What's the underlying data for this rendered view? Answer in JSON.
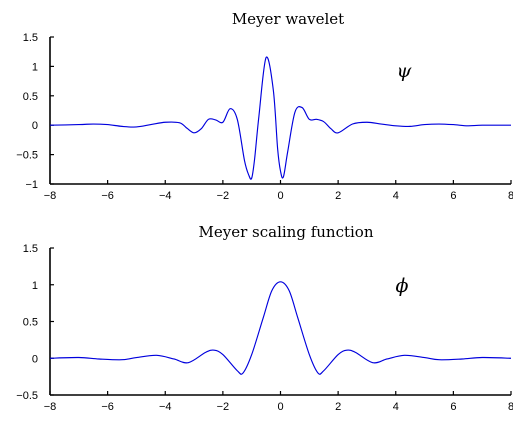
{
  "chart_data": [
    {
      "type": "line",
      "title": "Meyer wavelet",
      "annotation": "ψ",
      "xlabel": "",
      "ylabel": "",
      "xlim": [
        -8,
        8
      ],
      "ylim": [
        -1,
        1.5
      ],
      "xticks": [
        "−8",
        "−6",
        "−4",
        "−2",
        "0",
        "2",
        "4",
        "6",
        "8"
      ],
      "yticks": [
        "1.5",
        "1",
        "0.5",
        "0",
        "−0.5",
        "−1"
      ],
      "grid": false,
      "series": [
        {
          "color": "#0000dd",
          "x": [
            -8,
            -7,
            -6.5,
            -6,
            -5.5,
            -5,
            -4.5,
            -4,
            -3.5,
            -3.25,
            -3,
            -2.75,
            -2.5,
            -2.25,
            -2,
            -1.75,
            -1.5,
            -1.25,
            -1.1,
            -1,
            -0.9,
            -0.75,
            -0.5,
            -0.25,
            -0.1,
            0,
            0.1,
            0.25,
            0.5,
            0.75,
            1,
            1.25,
            1.5,
            1.75,
            2,
            2.5,
            3,
            3.5,
            4,
            4.5,
            5,
            5.5,
            6,
            6.5,
            7,
            8
          ],
          "y": [
            0,
            0.01,
            0.02,
            0.01,
            -0.02,
            -0.03,
            0.01,
            0.05,
            0.04,
            -0.05,
            -0.13,
            -0.06,
            0.1,
            0.09,
            0.05,
            0.28,
            0.1,
            -0.6,
            -0.85,
            -0.9,
            -0.58,
            0.15,
            1.15,
            0.6,
            -0.4,
            -0.78,
            -0.88,
            -0.45,
            0.22,
            0.3,
            0.1,
            0.1,
            0.06,
            -0.06,
            -0.13,
            0.02,
            0.05,
            0.02,
            -0.01,
            -0.02,
            0.01,
            0.02,
            0.01,
            -0.01,
            0,
            0
          ]
        }
      ]
    },
    {
      "type": "line",
      "title": "Meyer scaling function",
      "annotation": "ϕ",
      "xlabel": "",
      "ylabel": "",
      "xlim": [
        -8,
        8
      ],
      "ylim": [
        -0.5,
        1.5
      ],
      "xticks": [
        "−8",
        "−6",
        "−4",
        "−2",
        "0",
        "2",
        "4",
        "6",
        "8"
      ],
      "yticks": [
        "1.5",
        "1",
        "0.5",
        "0",
        "−0.5"
      ],
      "grid": false,
      "series": [
        {
          "color": "#0000dd",
          "x": [
            -8,
            -7,
            -6.3,
            -5.5,
            -5,
            -4.3,
            -3.7,
            -3.2,
            -2.6,
            -2.3,
            -2,
            -1.5,
            -1.3,
            -1,
            -0.6,
            -0.3,
            0,
            0.3,
            0.6,
            1,
            1.3,
            1.5,
            2,
            2.3,
            2.6,
            3.2,
            3.7,
            4.3,
            5,
            5.5,
            6.3,
            7,
            8
          ],
          "y": [
            0,
            0.01,
            -0.01,
            -0.02,
            0.01,
            0.04,
            -0.01,
            -0.06,
            0.08,
            0.11,
            0.05,
            -0.17,
            -0.2,
            0.05,
            0.55,
            0.92,
            1.04,
            0.92,
            0.55,
            0.05,
            -0.2,
            -0.17,
            0.05,
            0.11,
            0.08,
            -0.06,
            -0.01,
            0.04,
            0.01,
            -0.02,
            -0.01,
            0.01,
            0
          ]
        }
      ]
    }
  ]
}
